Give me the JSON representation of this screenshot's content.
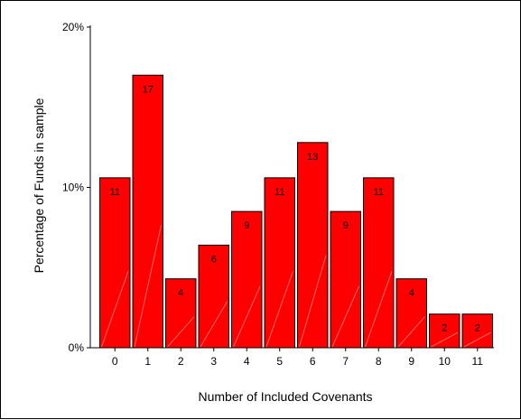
{
  "chart_data": {
    "type": "bar",
    "xlabel": "Number of Included Covenants",
    "ylabel": "Percentage of Funds in sample",
    "ylim": [
      0,
      20
    ],
    "yticks": [
      {
        "value": 0,
        "label": "0%"
      },
      {
        "value": 10,
        "label": "10%"
      },
      {
        "value": 20,
        "label": "20%"
      }
    ],
    "categories": [
      "0",
      "1",
      "2",
      "3",
      "4",
      "5",
      "6",
      "7",
      "8",
      "9",
      "10",
      "11"
    ],
    "values": [
      10.6,
      17.0,
      4.3,
      6.4,
      8.5,
      10.6,
      12.8,
      8.5,
      10.6,
      4.3,
      2.1,
      2.1
    ],
    "data_labels": [
      "11",
      "17",
      "4",
      "6",
      "9",
      "11",
      "13",
      "9",
      "11",
      "4",
      "2",
      "2"
    ],
    "grid": false,
    "legend": "none",
    "colors": {
      "bar": "#ff0000",
      "bar_edge": "#000000",
      "background": "#ffffff"
    }
  }
}
